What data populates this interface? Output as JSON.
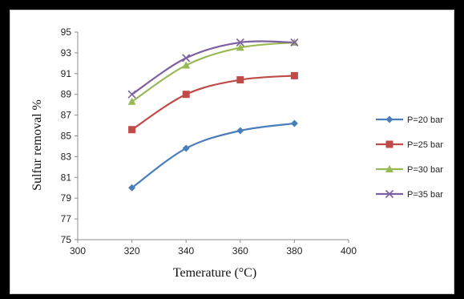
{
  "chart_data": {
    "type": "line",
    "x": [
      320,
      340,
      360,
      380
    ],
    "series": [
      {
        "name": "P=20 bar",
        "color": "#4a7ebb",
        "marker": "diamond",
        "values": [
          80.0,
          83.8,
          85.5,
          86.2
        ]
      },
      {
        "name": "P=25 bar",
        "color": "#be4b48",
        "marker": "square",
        "values": [
          85.6,
          89.0,
          90.4,
          90.8
        ]
      },
      {
        "name": "P=30 bar",
        "color": "#98b954",
        "marker": "triangle",
        "values": [
          88.3,
          91.8,
          93.5,
          94.0
        ]
      },
      {
        "name": "P=35 bar",
        "color": "#7d60a0",
        "marker": "cross",
        "values": [
          89.0,
          92.5,
          94.0,
          94.0
        ]
      }
    ],
    "xlabel": "Temerature (°C)",
    "ylabel": "Sulfur removal %",
    "xlim": [
      300,
      400
    ],
    "ylim": [
      75,
      95
    ],
    "xticks": [
      "300",
      "320",
      "340",
      "360",
      "380",
      "400"
    ],
    "yticks": [
      "75",
      "77",
      "79",
      "81",
      "83",
      "85",
      "87",
      "89",
      "91",
      "93",
      "95"
    ],
    "grid": false,
    "legend_position": "right"
  }
}
